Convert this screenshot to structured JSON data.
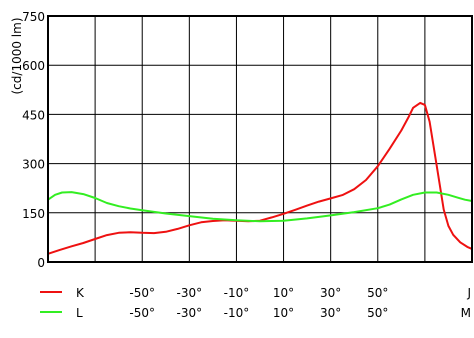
{
  "chart_data": {
    "type": "line",
    "title": "",
    "ylabel": "(cd/1000 lm)",
    "ylim": [
      0,
      750
    ],
    "xlim": [
      -90,
      90
    ],
    "y_ticks": [
      "0",
      "150",
      "300",
      "450",
      "600",
      "750"
    ],
    "y_tick_values": [
      0,
      150,
      300,
      450,
      600,
      750
    ],
    "x_gridlines": [
      -70,
      -50,
      -30,
      -10,
      10,
      30,
      50,
      70
    ],
    "grid": true,
    "x_tick_rows": [
      {
        "series_name": "K",
        "ticks": [
          {
            "value": -50,
            "label": "-50°"
          },
          {
            "value": -30,
            "label": "-30°"
          },
          {
            "value": -10,
            "label": "-10°"
          },
          {
            "value": 10,
            "label": "10°"
          },
          {
            "value": 30,
            "label": "30°"
          },
          {
            "value": 50,
            "label": "50°"
          },
          {
            "value": 90,
            "label": "J"
          }
        ]
      },
      {
        "series_name": "L",
        "ticks": [
          {
            "value": -50,
            "label": "-50°"
          },
          {
            "value": -30,
            "label": "-30°"
          },
          {
            "value": -10,
            "label": "-10°"
          },
          {
            "value": 10,
            "label": "10°"
          },
          {
            "value": 30,
            "label": "30°"
          },
          {
            "value": 50,
            "label": "50°"
          },
          {
            "value": 90,
            "label": "M"
          }
        ]
      }
    ],
    "series": [
      {
        "name": "K",
        "color": "#ee1111",
        "x": [
          -90,
          -85,
          -80,
          -75,
          -70,
          -65,
          -60,
          -55,
          -50,
          -45,
          -40,
          -35,
          -30,
          -25,
          -20,
          -15,
          -10,
          -5,
          0,
          5,
          10,
          15,
          20,
          25,
          30,
          35,
          40,
          45,
          50,
          55,
          60,
          63,
          65,
          68,
          70,
          72,
          75,
          78,
          80,
          82,
          85,
          88,
          90
        ],
        "y": [
          25,
          37,
          48,
          58,
          70,
          82,
          89,
          91,
          89,
          88,
          92,
          101,
          112,
          121,
          125,
          127,
          126,
          124,
          126,
          136,
          147,
          159,
          172,
          184,
          194,
          204,
          222,
          250,
          292,
          345,
          401,
          441,
          470,
          485,
          479,
          428,
          294,
          160,
          110,
          83,
          60,
          46,
          40
        ]
      },
      {
        "name": "L",
        "color": "#33ee22",
        "x": [
          -90,
          -87,
          -84,
          -80,
          -75,
          -70,
          -65,
          -60,
          -55,
          -50,
          -40,
          -30,
          -20,
          -10,
          0,
          10,
          20,
          30,
          40,
          50,
          55,
          60,
          65,
          70,
          75,
          80,
          84,
          87,
          90
        ],
        "y": [
          190,
          205,
          212,
          213,
          207,
          195,
          180,
          170,
          163,
          158,
          148,
          140,
          132,
          127,
          124,
          126,
          133,
          142,
          152,
          164,
          175,
          191,
          205,
          212,
          212,
          205,
          196,
          190,
          186
        ]
      }
    ]
  }
}
